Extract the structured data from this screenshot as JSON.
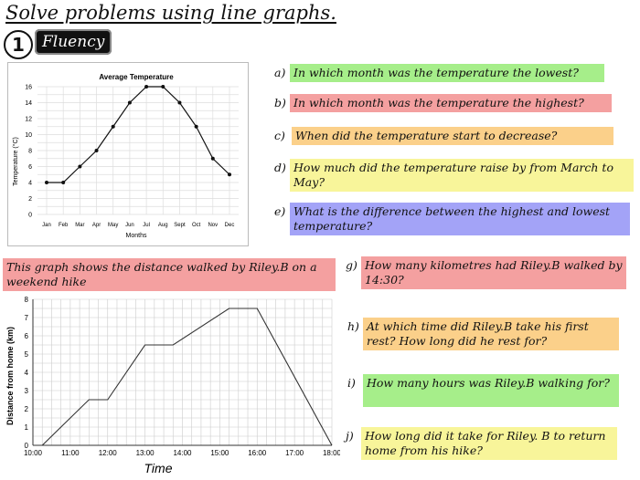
{
  "title": "Solve problems using line graphs.",
  "section": {
    "number": "1",
    "label": "Fluency"
  },
  "questions_top": [
    {
      "label": "a)",
      "text": "In which month was the temperature the lowest?",
      "color": "#a6ee8a"
    },
    {
      "label": "b)",
      "text": "In which month was the temperature the highest?",
      "color": "#f4a0a0"
    },
    {
      "label": "c)",
      "text": "When did the temperature start to decrease?",
      "color": "#fbd08a"
    },
    {
      "label": "d)",
      "text": "How much did the temperature raise by from March to May?",
      "color": "#f8f59a"
    },
    {
      "label": "e)",
      "text": "What is the difference between the highest and lowest temperature?",
      "color": "#a3a3f7"
    }
  ],
  "intro_text": "This graph shows the distance walked by Riley.B on a weekend hike",
  "questions_bottom": [
    {
      "label": "g)",
      "text": "How many kilometres had Riley.B walked by 14:30?",
      "color": "#f4a0a0"
    },
    {
      "label": "h)",
      "text": "At which time did Riley.B take his first rest? How long did he rest for?",
      "color": "#fbd08a"
    },
    {
      "label": "i)",
      "text": "How many hours was Riley.B walking for?",
      "color": "#a6ee8a"
    },
    {
      "label": "j)",
      "text": "How long did it take for Riley. B to return home from his hike?",
      "color": "#f8f59a"
    }
  ],
  "chart_data": [
    {
      "type": "line",
      "title": "Average Temperature",
      "xlabel": "Months",
      "ylabel": "Temperature (°C)",
      "categories": [
        "Jan",
        "Feb",
        "Mar",
        "Apr",
        "May",
        "Jun",
        "Jul",
        "Aug",
        "Sept",
        "Oct",
        "Nov",
        "Dec"
      ],
      "values": [
        4,
        4,
        6,
        8,
        11,
        14,
        16,
        16,
        14,
        11,
        7,
        5
      ],
      "ylim": [
        0,
        16
      ],
      "yticks": [
        0,
        2,
        4,
        6,
        8,
        10,
        12,
        14,
        16
      ],
      "grid": true
    },
    {
      "type": "line",
      "title": "",
      "xlabel": "Time",
      "ylabel": "Distance from home (km)",
      "x": [
        "10:00",
        "11:00",
        "12:00",
        "13:00",
        "14:00",
        "15:00",
        "16:00",
        "17:00",
        "18:00"
      ],
      "points": [
        {
          "x": "10:15",
          "y": 0
        },
        {
          "x": "11:30",
          "y": 2.5
        },
        {
          "x": "12:00",
          "y": 2.5
        },
        {
          "x": "13:00",
          "y": 5.5
        },
        {
          "x": "13:45",
          "y": 5.5
        },
        {
          "x": "15:15",
          "y": 7.5
        },
        {
          "x": "16:00",
          "y": 7.5
        },
        {
          "x": "18:00",
          "y": 0
        }
      ],
      "ylim": [
        0,
        8
      ],
      "yticks": [
        0,
        1,
        2,
        3,
        4,
        5,
        6,
        7,
        8
      ],
      "grid": true
    }
  ]
}
